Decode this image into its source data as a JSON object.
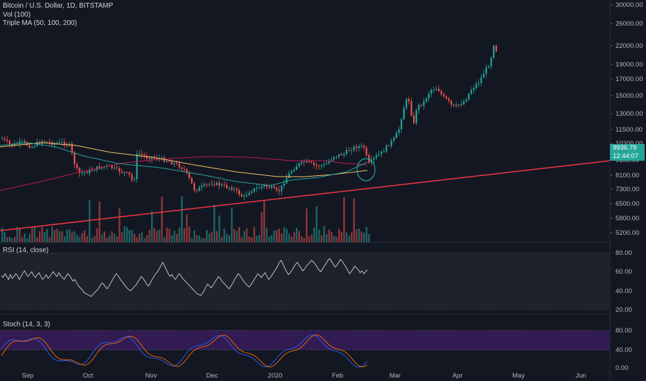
{
  "legend": {
    "symbol": "Bitcoin / U.S. Dollar, 1D, BITSTAMP",
    "volume": "Vol (100)",
    "ma": "Triple MA (50, 100, 200)"
  },
  "price_axis": [
    "30000.00",
    "26000.00",
    "22000.00",
    "19000.00",
    "17000.00",
    "15000.00",
    "13000.00",
    "11500.00",
    "10200.00",
    "9100.00",
    "8100.00",
    "7300.00",
    "6500.00",
    "5800.00",
    "5200.00"
  ],
  "price_tag": {
    "last": "9936.79",
    "countdown": "12:44:07"
  },
  "rsi": {
    "label": "RSI (14, close)",
    "ticks": [
      "80.00",
      "60.00",
      "40.00",
      "20.00"
    ],
    "series": [
      56,
      54,
      58,
      55,
      52,
      57,
      53,
      55,
      58,
      56,
      52,
      55,
      59,
      61,
      57,
      55,
      58,
      60,
      56,
      54,
      57,
      59,
      55,
      52,
      54,
      57,
      53,
      55,
      58,
      60,
      57,
      55,
      59,
      56,
      54,
      52,
      55,
      58,
      56,
      53,
      50,
      52,
      48,
      45,
      43,
      41,
      38,
      37,
      36,
      35,
      34,
      36,
      38,
      40,
      42,
      45,
      48,
      47,
      44,
      42,
      45,
      48,
      52,
      55,
      58,
      56,
      53,
      50,
      48,
      45,
      43,
      41,
      40,
      42,
      44,
      46,
      49,
      52,
      55,
      53,
      50,
      47,
      45,
      48,
      52,
      55,
      58,
      60,
      63,
      67,
      70,
      66,
      62,
      58,
      55,
      57,
      54,
      52,
      55,
      58,
      56,
      53,
      51,
      49,
      47,
      45,
      43,
      41,
      39,
      37,
      36,
      35,
      37,
      40,
      44,
      47,
      45,
      43,
      46,
      49,
      52,
      55,
      53,
      50,
      48,
      46,
      44,
      42,
      45,
      48,
      52,
      55,
      58,
      56,
      53,
      50,
      48,
      46,
      44,
      46,
      49,
      52,
      55,
      58,
      56,
      54,
      57,
      59,
      55,
      52,
      54,
      57,
      60,
      63,
      66,
      70,
      72,
      68,
      64,
      60,
      57,
      59,
      62,
      65,
      68,
      70,
      67,
      64,
      61,
      63,
      66,
      68,
      70,
      72,
      70,
      68,
      65,
      62,
      60,
      63,
      66,
      69,
      72,
      74,
      71,
      68,
      65,
      67,
      70,
      73,
      71,
      68,
      65,
      62,
      58,
      60,
      63,
      66,
      64,
      62,
      59,
      61,
      58,
      60,
      62
    ]
  },
  "stoch": {
    "label": "Stoch (14, 3, 3)",
    "ticks": [
      "80.00",
      "40.00",
      "0.00"
    ]
  },
  "time_axis": [
    "Sep",
    "Oct",
    "Nov",
    "Dec",
    "2020",
    "Feb",
    "Mar",
    "Apr",
    "May",
    "Jun"
  ],
  "colors": {
    "bg": "#131722",
    "up": "#26a69a",
    "down": "#ef5350",
    "trendline": "#f23645",
    "ma50": "#26a69a",
    "ma100": "#f5c36b",
    "ma200": "#c2185b",
    "stoch_band": "#311b52",
    "stoch_k": "#2962ff",
    "stoch_d": "#ff6d00",
    "rsi_line": "#d1d4dc",
    "grid": "#2a2e39"
  }
}
